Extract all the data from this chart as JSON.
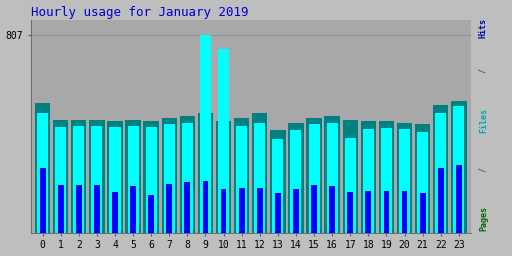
{
  "title": "Hourly usage for January 2019",
  "title_color": "#0000cc",
  "title_fontsize": 9,
  "hours": [
    0,
    1,
    2,
    3,
    4,
    5,
    6,
    7,
    8,
    9,
    10,
    11,
    12,
    13,
    14,
    15,
    16,
    17,
    18,
    19,
    20,
    21,
    22,
    23
  ],
  "pages": [
    530,
    460,
    460,
    460,
    455,
    460,
    455,
    470,
    475,
    490,
    455,
    470,
    490,
    420,
    450,
    470,
    475,
    460,
    455,
    455,
    450,
    445,
    520,
    540
  ],
  "files": [
    490,
    430,
    435,
    435,
    430,
    435,
    430,
    445,
    450,
    807,
    750,
    435,
    450,
    385,
    418,
    443,
    448,
    388,
    423,
    428,
    423,
    413,
    490,
    518
  ],
  "hits": [
    265,
    195,
    195,
    195,
    168,
    193,
    153,
    200,
    207,
    212,
    178,
    183,
    182,
    162,
    177,
    197,
    192,
    167,
    172,
    172,
    172,
    162,
    265,
    275
  ],
  "pages_color": "#008080",
  "files_color": "#00ffff",
  "hits_color": "#0000ff",
  "bg_color": "#bebebe",
  "plot_bg_color": "#a8a8a8",
  "ytick_label": "807",
  "ylim": [
    0,
    870
  ],
  "bar_width": 0.85,
  "grid_color": "#909090",
  "grid_y": [
    807
  ],
  "xlabel_fontsize": 7,
  "ylabel_fontsize": 6
}
